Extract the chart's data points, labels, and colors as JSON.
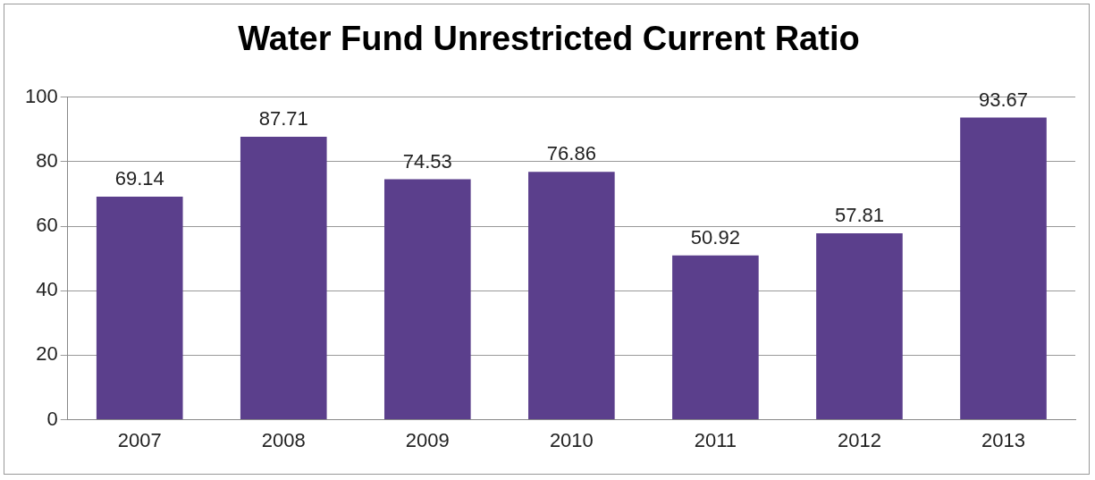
{
  "chart_data": {
    "type": "bar",
    "title": "Water Fund Unrestricted Current Ratio",
    "categories": [
      "2007",
      "2008",
      "2009",
      "2010",
      "2011",
      "2012",
      "2013"
    ],
    "values": [
      69.14,
      87.71,
      74.53,
      76.86,
      50.92,
      57.81,
      93.67
    ],
    "color": "#5b3f8c",
    "ylim": [
      0,
      100
    ],
    "yticks": [
      0,
      20,
      40,
      60,
      80,
      100
    ],
    "grid": "y",
    "legend": false,
    "data_labels": true
  }
}
